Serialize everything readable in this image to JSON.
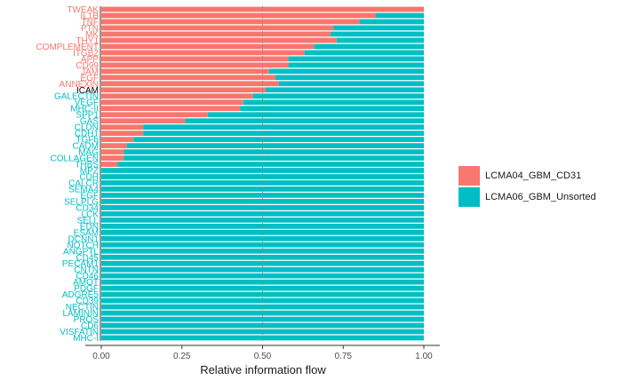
{
  "chart_data": {
    "type": "bar",
    "orientation": "horizontal",
    "stacked": true,
    "xlabel": "Relative information flow",
    "ylabel": "",
    "xlim": [
      0,
      1
    ],
    "x_ticks": [
      "0.00",
      "0.25",
      "0.50",
      "0.75",
      "1.00"
    ],
    "reference_line": 0.5,
    "legend_position": "right",
    "categories": [
      "TWEAK",
      "IL1B",
      "TNF",
      "PTN",
      "MK",
      "THY1",
      "COMPLEMENT",
      "ITGB2",
      "APP",
      "CD99",
      "JAM",
      "EGF",
      "ANNEXIN",
      "ICAM",
      "GALECTIN",
      "VEGF",
      "MHC-II",
      "SPP1",
      "GAS",
      "CLDN",
      "CDH1",
      "TGFb",
      "CADM",
      "MAG",
      "COLLAGEN",
      "THBS",
      "MPZ",
      "CDH",
      "CALCR",
      "SEMA4",
      "EGF",
      "SELPLG",
      "CD34",
      "LCK",
      "SELL",
      "EDN",
      "ESAM",
      "DCNN1",
      "NOTCH",
      "ANGPTL",
      "CD45",
      "PECAM1",
      "CNTN",
      "CD46",
      "AMOT",
      "PDGF",
      "ADGRE5",
      "CD39",
      "NECTIN",
      "LAMININ",
      "PROS",
      "CD6",
      "VISFATIN",
      "MHC-I"
    ],
    "label_colors": [
      "#F8766D",
      "#F8766D",
      "#F8766D",
      "#F8766D",
      "#F8766D",
      "#F8766D",
      "#F8766D",
      "#F8766D",
      "#F8766D",
      "#F8766D",
      "#F8766D",
      "#F8766D",
      "#F8766D",
      "#000000",
      "#00BFC4",
      "#00BFC4",
      "#00BFC4",
      "#00BFC4",
      "#00BFC4",
      "#00BFC4",
      "#00BFC4",
      "#00BFC4",
      "#00BFC4",
      "#00BFC4",
      "#00BFC4",
      "#00BFC4",
      "#00BFC4",
      "#00BFC4",
      "#00BFC4",
      "#00BFC4",
      "#00BFC4",
      "#00BFC4",
      "#00BFC4",
      "#00BFC4",
      "#00BFC4",
      "#00BFC4",
      "#00BFC4",
      "#00BFC4",
      "#00BFC4",
      "#00BFC4",
      "#00BFC4",
      "#00BFC4",
      "#00BFC4",
      "#00BFC4",
      "#00BFC4",
      "#00BFC4",
      "#00BFC4",
      "#00BFC4",
      "#00BFC4",
      "#00BFC4",
      "#00BFC4",
      "#00BFC4",
      "#00BFC4",
      "#00BFC4"
    ],
    "series": [
      {
        "name": "LCMA04_GBM_CD31",
        "color": "#F8766D",
        "values": [
          1.0,
          0.85,
          0.8,
          0.72,
          0.71,
          0.73,
          0.66,
          0.63,
          0.58,
          0.58,
          0.52,
          0.54,
          0.55,
          0.51,
          0.47,
          0.44,
          0.43,
          0.33,
          0.26,
          0.13,
          0.13,
          0.1,
          0.08,
          0.07,
          0.07,
          0.05,
          0,
          0,
          0,
          0,
          0,
          0,
          0,
          0,
          0,
          0,
          0,
          0,
          0,
          0,
          0,
          0,
          0,
          0,
          0,
          0,
          0,
          0,
          0,
          0,
          0,
          0,
          0,
          0
        ]
      },
      {
        "name": "LCMA06_GBM_Unsorted",
        "color": "#00BFC4",
        "values": [
          0.0,
          0.15,
          0.2,
          0.28,
          0.29,
          0.27,
          0.34,
          0.37,
          0.42,
          0.42,
          0.48,
          0.46,
          0.45,
          0.49,
          0.53,
          0.56,
          0.57,
          0.67,
          0.74,
          0.87,
          0.87,
          0.9,
          0.92,
          0.93,
          0.93,
          0.95,
          1,
          1,
          1,
          1,
          1,
          1,
          1,
          1,
          1,
          1,
          1,
          1,
          1,
          1,
          1,
          1,
          1,
          1,
          1,
          1,
          1,
          1,
          1,
          1,
          1,
          1,
          1,
          1
        ]
      }
    ]
  }
}
